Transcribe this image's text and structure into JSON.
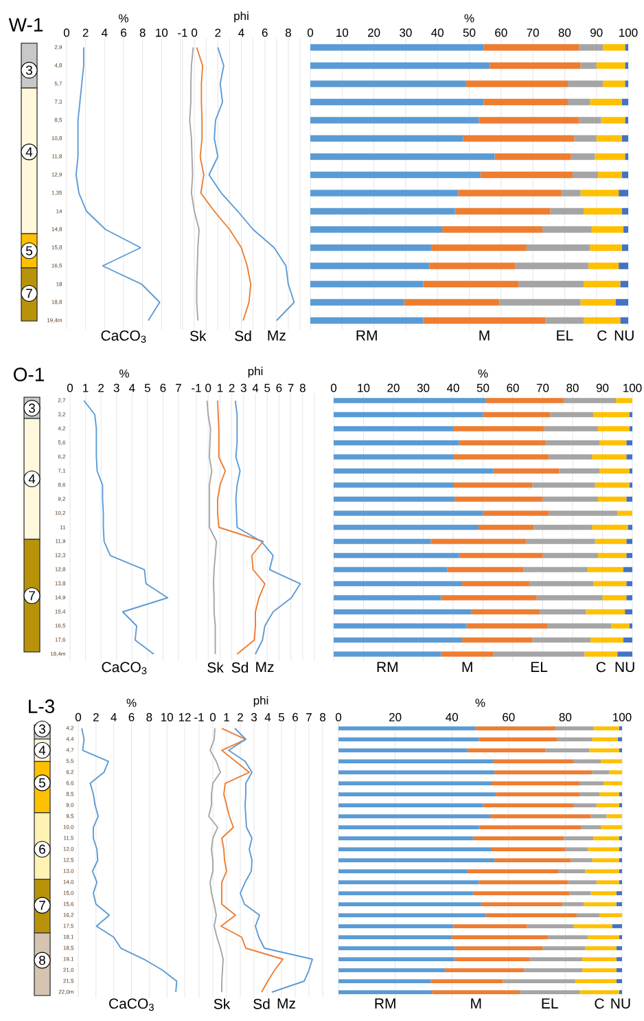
{
  "chart_data": [
    {
      "type": "line",
      "orientation": "horizontal",
      "title": "W-1",
      "xlabel": "%",
      "categories": [
        "2,9",
        "4,8",
        "5,7",
        "7,3",
        "8,5",
        "10,8",
        "11,8",
        "12,9",
        "1,35",
        "14",
        "14,8",
        "15,8",
        "16,5",
        "18",
        "18,8",
        "19,4m"
      ],
      "xlim": [
        0,
        12
      ],
      "xticks": [
        0,
        2,
        4,
        6,
        8,
        10,
        {
          "value": 12,
          "label": null
        }
      ],
      "grid": "x",
      "series": [
        {
          "name": "CaCO$_{3}$",
          "color": "#5b9bd5",
          "values": [
            1.8,
            1.8,
            1.6,
            1.4,
            1.2,
            1.2,
            1.2,
            1.0,
            1.3,
            2.1,
            4.1,
            7.8,
            3.8,
            7.9,
            9.8,
            8.6
          ]
        }
      ],
      "annotations": [
        "3",
        "4",
        "5",
        "7"
      ]
    },
    {
      "type": "line",
      "orientation": "horizontal",
      "xlabel": "phi",
      "categories": [
        null,
        null,
        null,
        null,
        null,
        null,
        null,
        null,
        null,
        null,
        null,
        null,
        null,
        null,
        null,
        null
      ],
      "tick_labels": "x",
      "xlim": [
        -1,
        9
      ],
      "xticks": [
        -1,
        0,
        {
          "value": 1,
          "label": null
        },
        2,
        {
          "value": 3,
          "label": null
        },
        4,
        {
          "value": 5,
          "label": null
        },
        6,
        {
          "value": 7,
          "label": null
        },
        8,
        {
          "value": 9,
          "label": null
        }
      ],
      "grid": "x",
      "series": [
        {
          "name": "Sk",
          "color": "#a5a5a5",
          "values": [
            -0.1,
            -0.25,
            -0.3,
            -0.3,
            -0.4,
            -0.25,
            -0.2,
            -0.15,
            -0.25,
            0,
            0.4,
            0.3,
            0.25,
            0.2,
            0.2,
            0.3
          ]
        },
        {
          "name": "Sd",
          "color": "#ed7d31",
          "values": [
            0.2,
            0.7,
            0.6,
            0.6,
            0.65,
            0.65,
            0.5,
            0.8,
            0.55,
            1.7,
            3.0,
            4.0,
            4.5,
            4.8,
            4.65,
            4.15
          ]
        },
        {
          "name": "Mz",
          "color": "#5b9bd5",
          "values": [
            2.0,
            2.5,
            2.2,
            2.4,
            1.8,
            1.7,
            2.0,
            1.25,
            2.3,
            3.7,
            5.0,
            6.8,
            7.8,
            8.0,
            8.5,
            7.0
          ]
        }
      ]
    },
    {
      "type": "bar",
      "orientation": "horizontal",
      "stacked": true,
      "xlabel": "%",
      "categories": [
        null,
        null,
        null,
        null,
        null,
        null,
        null,
        null,
        null,
        null,
        null,
        null,
        null,
        null,
        null,
        null
      ],
      "tick_labels": "x",
      "xlim": [
        0,
        100
      ],
      "xticks": [
        0,
        10,
        20,
        30,
        40,
        50,
        60,
        70,
        80,
        90,
        100
      ],
      "grid": "x",
      "series": [
        {
          "name": "RM",
          "color": "#5b9bd5",
          "values": [
            54.5,
            56.5,
            49,
            54.5,
            53,
            48,
            58,
            53.5,
            46.5,
            45.5,
            41.5,
            38,
            37.5,
            35.5,
            29.5,
            35.5
          ]
        },
        {
          "name": "M",
          "color": "#ed7d31",
          "values": [
            30,
            28.5,
            32,
            26.5,
            31.5,
            35,
            24,
            29,
            32.5,
            30,
            31.5,
            30,
            27,
            30,
            30,
            38.5
          ]
        },
        {
          "name": "EL",
          "color": "#a5a5a5",
          "values": [
            7.5,
            5,
            11,
            7,
            7,
            7,
            7.5,
            8,
            6,
            10.5,
            15.5,
            20,
            23,
            20.5,
            25.5,
            12
          ]
        },
        {
          "name": "C",
          "color": "#ffc000",
          "values": [
            7,
            9,
            7,
            10,
            7.5,
            8,
            9.5,
            7.5,
            12,
            12,
            10,
            10,
            9.5,
            11.5,
            11,
            11.5
          ]
        },
        {
          "name": "NU",
          "color": "#4472c4",
          "values": [
            1,
            1,
            1,
            2,
            1,
            2,
            1,
            2,
            3,
            2,
            1.5,
            2,
            3,
            2.5,
            4,
            2.5
          ]
        }
      ]
    },
    {
      "type": "line",
      "orientation": "horizontal",
      "title": "O-1",
      "xlabel": "%",
      "categories": [
        "2,7",
        "3,2",
        "4,2",
        "5,6",
        "6,2",
        "7,1",
        "8,6",
        "9,2",
        "10,2",
        "11",
        "11,9",
        "12,3",
        "12,8",
        "13,8",
        "14,9",
        "15,4",
        "16,5",
        "17,6",
        "18,4m"
      ],
      "xlim": [
        0,
        7
      ],
      "xticks": [
        0,
        1,
        2,
        3,
        4,
        5,
        6,
        7
      ],
      "grid": "x",
      "series": [
        {
          "name": "CaCO$_{3}$",
          "color": "#5b9bd5",
          "values": [
            0.9,
            1.6,
            1.7,
            1.7,
            1.7,
            1.75,
            2.1,
            2.1,
            2.15,
            2.15,
            2.2,
            2.6,
            4.8,
            4.9,
            6.3,
            3.4,
            4.3,
            4.2,
            5.4
          ]
        }
      ],
      "annotations": [
        "3",
        "4",
        "7"
      ]
    },
    {
      "type": "line",
      "orientation": "horizontal",
      "xlabel": "phi",
      "categories": [
        null,
        null,
        null,
        null,
        null,
        null,
        null,
        null,
        null,
        null,
        null,
        null,
        null,
        null,
        null,
        null,
        null,
        null,
        null
      ],
      "tick_labels": "x",
      "xlim": [
        -1,
        9
      ],
      "xticks": [
        -1,
        0,
        1,
        2,
        3,
        4,
        5,
        6,
        7,
        8,
        {
          "value": 9,
          "label": null
        }
      ],
      "grid": "x",
      "series": [
        {
          "name": "Sk",
          "color": "#a5a5a5",
          "values": [
            -0.1,
            0,
            0.2,
            0.15,
            0.1,
            0.3,
            0.1,
            0.1,
            0.1,
            0.1,
            0.7,
            0.6,
            0.5,
            0.45,
            0.5,
            0.5,
            0.6,
            0.6,
            0.6
          ]
        },
        {
          "name": "Sd",
          "color": "#ed7d31",
          "values": [
            0.8,
            0.85,
            0.9,
            0.9,
            0.9,
            1.45,
            1.0,
            0.8,
            0.8,
            0.9,
            4.65,
            3.7,
            3.8,
            4.8,
            4.3,
            4.0,
            4.0,
            3.9,
            2.45
          ]
        },
        {
          "name": "Mz",
          "color": "#5b9bd5",
          "values": [
            2.3,
            2.45,
            2.45,
            2.45,
            2.35,
            2.7,
            2.45,
            2.35,
            2.4,
            2.45,
            4.5,
            5.5,
            5.2,
            7.8,
            7.05,
            5.5,
            4.8,
            4.6,
            4.0
          ]
        }
      ]
    },
    {
      "type": "bar",
      "orientation": "horizontal",
      "stacked": true,
      "xlabel": "%",
      "categories": [
        null,
        null,
        null,
        null,
        null,
        null,
        null,
        null,
        null,
        null,
        null,
        null,
        null,
        null,
        null,
        null,
        null,
        null,
        null
      ],
      "tick_labels": "x",
      "xlim": [
        0,
        100
      ],
      "xticks": [
        0,
        10,
        20,
        30,
        40,
        50,
        60,
        70,
        80,
        90,
        100
      ],
      "grid": "x",
      "series": [
        {
          "name": "RM",
          "color": "#5b9bd5",
          "values": [
            51,
            50,
            40,
            42,
            40,
            53.5,
            40,
            40.5,
            50,
            48.5,
            32.5,
            42,
            38,
            43,
            36,
            46,
            44.5,
            43,
            36
          ]
        },
        {
          "name": "M",
          "color": "#ed7d31",
          "values": [
            26,
            22.5,
            30.5,
            29,
            32,
            22,
            26.5,
            29.5,
            22,
            18.5,
            32,
            28,
            25.5,
            22.5,
            32,
            23,
            27,
            23.5,
            17.5
          ]
        },
        {
          "name": "EL",
          "color": "#a5a5a5",
          "values": [
            17.5,
            14.5,
            18,
            18,
            14.5,
            13.5,
            21,
            18.5,
            23,
            19.5,
            23,
            18.5,
            21.5,
            21.5,
            22,
            15.5,
            21.5,
            19.5,
            30.5
          ]
        },
        {
          "name": "C",
          "color": "#ffc000",
          "values": [
            5.5,
            12,
            10.5,
            9,
            11.5,
            10,
            11.5,
            9.5,
            5,
            12,
            10.5,
            9.5,
            12,
            11,
            8,
            13,
            6,
            11,
            11
          ]
        },
        {
          "name": "NU",
          "color": "#4472c4",
          "values": [
            0,
            1,
            1,
            2,
            2,
            1,
            1,
            2,
            0,
            1.5,
            2,
            2,
            3,
            2,
            2,
            2.5,
            1,
            3,
            5
          ]
        }
      ]
    },
    {
      "type": "line",
      "orientation": "horizontal",
      "title": "L-3",
      "xlabel": "%",
      "categories": [
        "4,2",
        "4,4",
        "4,7",
        "5,5",
        "6,2",
        "6,6",
        "8,5",
        "9,0",
        "9,5",
        "10,0",
        "11,5",
        "12,0",
        "12,5",
        "13,0",
        "14,0",
        "15,0",
        "15,6",
        "16,2",
        "17,5",
        "18,1",
        "18,5",
        "19,1",
        "21,0",
        "21,5",
        "22,0m"
      ],
      "xlim": [
        0,
        12
      ],
      "xticks": [
        0,
        2,
        4,
        6,
        8,
        10,
        12
      ],
      "grid": "x",
      "series": [
        {
          "name": "CaCO$_{3}$",
          "color": "#5b9bd5",
          "values": [
            0.4,
            0.65,
            0.5,
            3.4,
            2.9,
            1.35,
            1.7,
            1.9,
            2.25,
            1.7,
            1.7,
            2.1,
            2.2,
            1.6,
            2.1,
            1.7,
            2.0,
            3.5,
            2.05,
            4.0,
            4.8,
            7.4,
            9.5,
            11.1,
            11.0
          ]
        }
      ],
      "annotations": [
        "3",
        "4",
        "5",
        "6",
        "7",
        "8"
      ]
    },
    {
      "type": "line",
      "orientation": "horizontal",
      "xlabel": "phi",
      "categories": [
        null,
        null,
        null,
        null,
        null,
        null,
        null,
        null,
        null,
        null,
        null,
        null,
        null,
        null,
        null,
        null,
        null,
        null,
        null,
        null,
        null,
        null,
        null,
        null,
        null
      ],
      "tick_labels": "x",
      "xlim": [
        -1,
        8
      ],
      "xticks": [
        -1,
        0,
        1,
        2,
        3,
        4,
        5,
        6,
        7,
        8
      ],
      "grid": "x",
      "series": [
        {
          "name": "Sk",
          "color": "#a5a5a5",
          "values": [
            0.15,
            0.1,
            -0.2,
            0.25,
            0.55,
            0,
            -0.1,
            -0.1,
            -0.3,
            0.35,
            0,
            -0.1,
            0,
            0,
            -0.2,
            -0.1,
            0.1,
            0.25,
            0.1,
            0.3,
            0.55,
            0.75,
            0.7,
            0.65,
            0.65
          ]
        },
        {
          "name": "Sd",
          "color": "#ed7d31",
          "values": [
            0.65,
            2.4,
            0.65,
            1.65,
            2.65,
            0.9,
            0.8,
            1.0,
            1.2,
            1.5,
            0.65,
            0.8,
            0.85,
            1.0,
            0.65,
            0.65,
            0.65,
            1.65,
            0.6,
            2.1,
            2.4,
            5.1,
            4.5,
            4.0,
            3.55
          ]
        },
        {
          "name": "Mz",
          "color": "#5b9bd5",
          "values": [
            1.6,
            2.4,
            1.15,
            2.35,
            2.85,
            2.4,
            2.4,
            2.35,
            2.4,
            2.45,
            2.85,
            2.65,
            2.85,
            2.8,
            2.35,
            2.0,
            2.3,
            3.4,
            3.1,
            3.35,
            3.75,
            7.25,
            7.0,
            6.65,
            4.3
          ]
        }
      ]
    },
    {
      "type": "bar",
      "orientation": "horizontal",
      "stacked": true,
      "xlabel": "%",
      "categories": [
        null,
        null,
        null,
        null,
        null,
        null,
        null,
        null,
        null,
        null,
        null,
        null,
        null,
        null,
        null,
        null,
        null,
        null,
        null,
        null,
        null,
        null,
        null,
        null,
        null
      ],
      "tick_labels": "x",
      "xlim": [
        0,
        100
      ],
      "xticks": [
        0,
        20,
        40,
        60,
        80,
        100
      ],
      "grid": "x",
      "series": [
        {
          "name": "RM",
          "color": "#5b9bd5",
          "values": [
            48.5,
            49.5,
            45.5,
            54.5,
            55,
            54,
            55.5,
            51,
            53.5,
            49.5,
            47.5,
            54,
            55,
            45.5,
            49.5,
            47.5,
            50.5,
            52,
            40.5,
            40,
            41,
            41,
            37.5,
            32.5,
            33
          ]
        },
        {
          "name": "M",
          "color": "#ed7d31",
          "values": [
            28,
            27.5,
            27.5,
            28.5,
            34.5,
            31,
            29.5,
            32,
            35.5,
            36,
            32,
            26,
            27,
            32,
            31.5,
            34,
            28.5,
            32,
            26,
            34,
            31,
            26.5,
            28,
            25.5,
            31
          ]
        },
        {
          "name": "EL",
          "color": "#a5a5a5",
          "values": [
            13.5,
            12.5,
            15.5,
            9.5,
            6,
            8.5,
            7,
            8,
            5.5,
            7,
            10.5,
            8,
            7.5,
            9.5,
            10,
            7.5,
            7.5,
            8,
            16.5,
            14,
            15,
            18.5,
            20.5,
            25.5,
            21
          ]
        },
        {
          "name": "C",
          "color": "#ffc000",
          "values": [
            9,
            9,
            10.5,
            7.5,
            4.5,
            6.5,
            7,
            8,
            5.5,
            7.5,
            9,
            11,
            9.5,
            12,
            8,
            9,
            11.5,
            8,
            13.5,
            11,
            11,
            12,
            12,
            14.5,
            14
          ]
        },
        {
          "name": "NU",
          "color": "#4472c4",
          "values": [
            1,
            1.5,
            1,
            0,
            0,
            0,
            1,
            1,
            0,
            0,
            1,
            1,
            1,
            1,
            1,
            2,
            2,
            0,
            3.5,
            1,
            2,
            2,
            2,
            2,
            1
          ]
        }
      ]
    }
  ]
}
